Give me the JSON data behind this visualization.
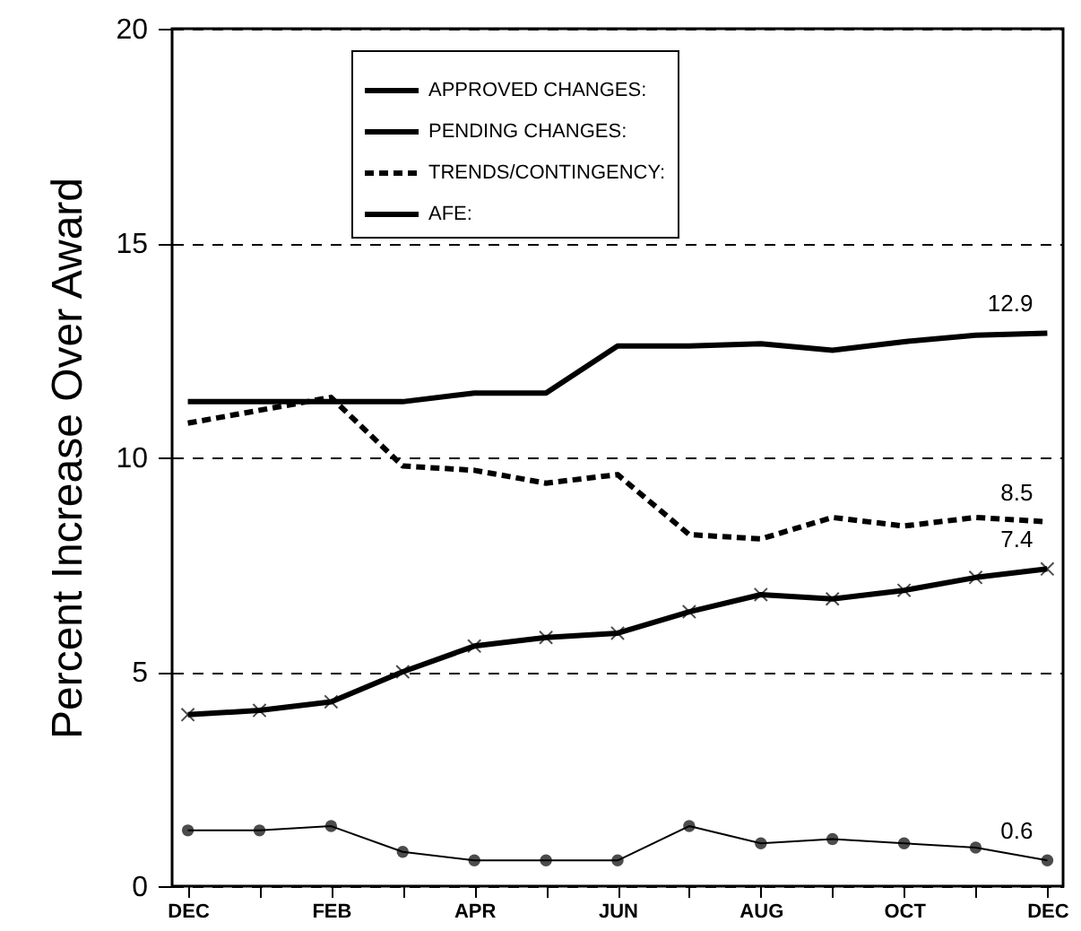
{
  "chart_data": {
    "type": "line",
    "ylabel": "Percent Increase Over Award",
    "categories": [
      "DEC",
      null,
      "FEB",
      null,
      "APR",
      null,
      "JUN",
      null,
      "AUG",
      null,
      "OCT",
      null,
      "DEC"
    ],
    "series": [
      {
        "name": "APPROVED CHANGES:",
        "color": "#000000",
        "marker": "cross",
        "line_style": "solid",
        "values": [
          4.0,
          4.1,
          4.3,
          5.0,
          5.6,
          5.8,
          5.9,
          6.4,
          6.8,
          6.7,
          6.9,
          7.2,
          7.4
        ],
        "value_labels": [
          null,
          null,
          null,
          null,
          null,
          null,
          null,
          null,
          null,
          null,
          null,
          null,
          "7.4"
        ]
      },
      {
        "name": "PENDING CHANGES:",
        "color": "#000000",
        "marker": "circle",
        "line_style": "solid",
        "values": [
          1.3,
          1.3,
          1.4,
          0.8,
          0.6,
          0.6,
          0.6,
          1.4,
          1.0,
          1.1,
          1.0,
          0.9,
          0.6
        ],
        "value_labels": [
          null,
          null,
          null,
          null,
          null,
          null,
          null,
          null,
          null,
          null,
          null,
          null,
          "0.6"
        ]
      },
      {
        "name": "TRENDS/CONTINGENCY:",
        "color": "#000000",
        "marker": "none",
        "line_style": "dashed",
        "values": [
          10.8,
          11.1,
          11.4,
          9.8,
          9.7,
          9.4,
          9.6,
          8.2,
          8.1,
          8.6,
          8.4,
          8.6,
          8.5
        ],
        "value_labels": [
          null,
          null,
          null,
          null,
          null,
          null,
          null,
          null,
          null,
          null,
          null,
          null,
          "8.5"
        ]
      },
      {
        "name": "AFE:",
        "color": "#000000",
        "marker": "none",
        "line_style": "solid",
        "values": [
          11.3,
          11.3,
          11.3,
          11.3,
          11.5,
          11.5,
          12.6,
          12.6,
          12.65,
          12.5,
          12.7,
          12.85,
          12.9
        ],
        "value_labels": [
          null,
          null,
          null,
          null,
          null,
          null,
          null,
          null,
          null,
          null,
          null,
          null,
          "12.9"
        ]
      }
    ],
    "ylim": [
      0,
      20
    ],
    "yticks": [
      0,
      5,
      10,
      15,
      20
    ],
    "grid": "y",
    "legend": "top"
  }
}
